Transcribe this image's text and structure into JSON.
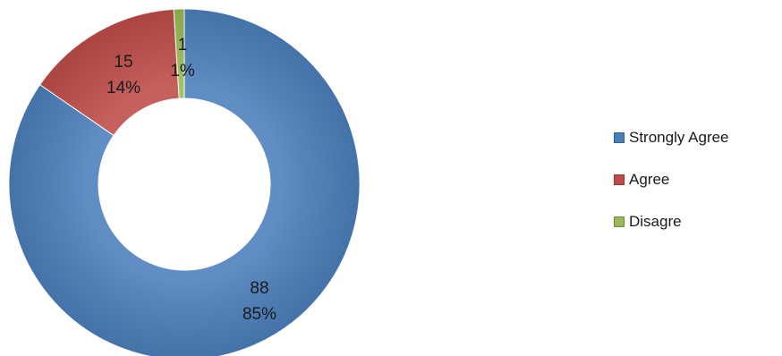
{
  "chart_data": {
    "type": "pie",
    "variant": "donut",
    "categories": [
      "Strongly Agree",
      "Agree",
      "Disagre"
    ],
    "values": [
      88,
      15,
      1
    ],
    "percent_labels": [
      "85%",
      "14%",
      "1%"
    ],
    "colors": [
      "#4a7ebb",
      "#be4b48",
      "#98b954"
    ],
    "legend_position": "right",
    "title": ""
  }
}
